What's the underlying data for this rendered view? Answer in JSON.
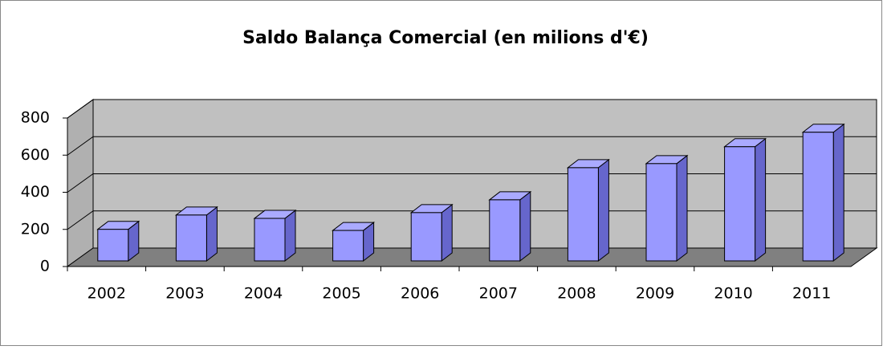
{
  "chart_data": {
    "type": "bar3d",
    "title": "Saldo Balança Comercial (en milions d'€)",
    "categories": [
      "2002",
      "2003",
      "2004",
      "2005",
      "2006",
      "2007",
      "2008",
      "2009",
      "2010",
      "2011"
    ],
    "values": [
      170,
      247,
      229,
      164,
      260,
      329,
      502,
      524,
      615,
      693
    ],
    "color": "#9999ff",
    "ylim": [
      0,
      800
    ],
    "yticks": [
      0,
      200,
      400,
      600,
      800
    ],
    "grid": true
  }
}
